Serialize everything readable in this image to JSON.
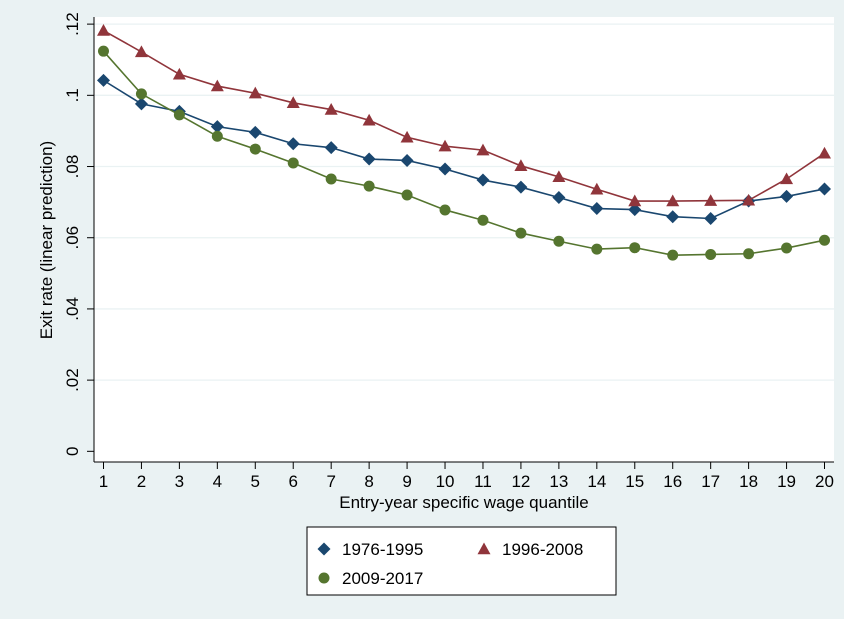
{
  "chart_data": {
    "type": "line",
    "xlabel": "Entry-year specific wage quantile",
    "ylabel": "Exit rate (linear prediction)",
    "x": [
      1,
      2,
      3,
      4,
      5,
      6,
      7,
      8,
      9,
      10,
      11,
      12,
      13,
      14,
      15,
      16,
      17,
      18,
      19,
      20
    ],
    "xlim": [
      0.75,
      20.25
    ],
    "ylim": [
      -0.003,
      0.122
    ],
    "xticks": [
      1,
      2,
      3,
      4,
      5,
      6,
      7,
      8,
      9,
      10,
      11,
      12,
      13,
      14,
      15,
      16,
      17,
      18,
      19,
      20
    ],
    "xtick_labels": [
      "1",
      "2",
      "3",
      "4",
      "5",
      "6",
      "7",
      "8",
      "9",
      "10",
      "11",
      "12",
      "13",
      "14",
      "15",
      "16",
      "17",
      "18",
      "19",
      "20"
    ],
    "yticks": [
      0,
      0.02,
      0.04,
      0.06,
      0.08,
      0.1,
      0.12
    ],
    "ytick_labels": [
      "0",
      ".02",
      ".04",
      ".06",
      ".08",
      ".1",
      ".12"
    ],
    "grid": true,
    "legend_position": "bottom",
    "background": "#eaf2f3",
    "series": [
      {
        "name": "1976-1995",
        "marker": "diamond",
        "color": "#1a476f",
        "values": [
          0.1042,
          0.0976,
          0.0955,
          0.0912,
          0.0896,
          0.0864,
          0.0853,
          0.0821,
          0.0817,
          0.0793,
          0.0762,
          0.0742,
          0.0713,
          0.0682,
          0.0679,
          0.0659,
          0.0654,
          0.0703,
          0.0716,
          0.0737
        ]
      },
      {
        "name": "1996-2008",
        "marker": "triangle",
        "color": "#90353b",
        "values": [
          0.1182,
          0.1122,
          0.1059,
          0.1026,
          0.1006,
          0.0979,
          0.096,
          0.093,
          0.0882,
          0.0857,
          0.0846,
          0.0802,
          0.0771,
          0.0736,
          0.0703,
          0.0703,
          0.0704,
          0.0705,
          0.0765,
          0.0837
        ]
      },
      {
        "name": "2009-2017",
        "marker": "circle",
        "color": "#55752f",
        "values": [
          0.1124,
          0.1004,
          0.0945,
          0.0885,
          0.0849,
          0.081,
          0.0765,
          0.0745,
          0.072,
          0.0678,
          0.0649,
          0.0613,
          0.059,
          0.0568,
          0.0572,
          0.0551,
          0.0553,
          0.0555,
          0.0571,
          0.0593
        ]
      }
    ]
  }
}
